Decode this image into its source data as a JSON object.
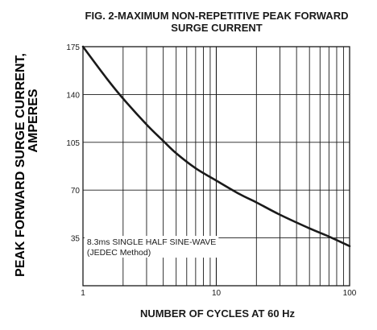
{
  "chart_data": {
    "type": "line",
    "title_line1": "FIG. 2-MAXIMUM NON-REPETITIVE PEAK FORWARD",
    "title_line2": "SURGE CURRENT",
    "xlabel": "NUMBER OF CYCLES AT 60 Hz",
    "ylabel_line1": "PEAK  FORWARD SURGE CURRENT,",
    "ylabel_line2": "AMPERES",
    "x_scale": "log",
    "xlim": [
      1,
      100
    ],
    "ylim": [
      0,
      175
    ],
    "x_ticks": [
      "1",
      "10",
      "100"
    ],
    "y_ticks": [
      175,
      140,
      105,
      70,
      35
    ],
    "grid": true,
    "annotation_line1": "8.3ms SINGLE HALF SINE-WAVE",
    "annotation_line2": "(JEDEC Method)",
    "series": [
      {
        "x": [
          1,
          1.5,
          2,
          3,
          4,
          5,
          7,
          10,
          15,
          20,
          30,
          50,
          70,
          100
        ],
        "y": [
          175,
          152,
          137,
          118,
          106,
          97,
          86,
          77,
          67,
          61,
          52,
          42,
          36,
          29
        ]
      }
    ]
  }
}
